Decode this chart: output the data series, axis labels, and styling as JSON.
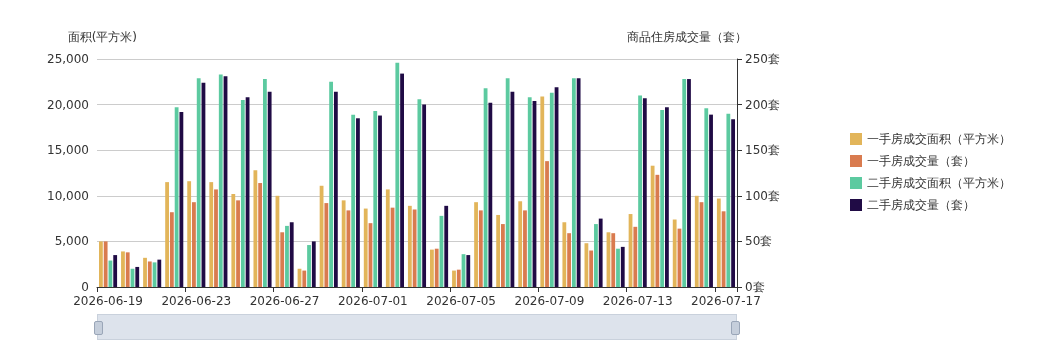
{
  "chart_data": {
    "type": "bar",
    "ylabel": "面积(平方米)",
    "y2label": "商品住房成交量（套）",
    "categories": [
      "2026-06-19",
      null,
      null,
      null,
      "2026-06-23",
      null,
      null,
      null,
      "2026-06-27",
      null,
      null,
      null,
      "2026-07-01",
      null,
      null,
      null,
      "2026-07-05",
      null,
      null,
      null,
      "2026-07-09",
      null,
      null,
      null,
      "2026-07-13",
      null,
      null,
      null,
      "2026-07-17"
    ],
    "series": [
      {
        "name": "一手房成交面积（平方米）",
        "color": "#e2b55a",
        "values": [
          5000,
          3900,
          3200,
          11500,
          11600,
          11500,
          10200,
          12800,
          10000,
          2000,
          11100,
          9500,
          8600,
          10700,
          8900,
          4100,
          1800,
          9300,
          7900,
          9400,
          20900,
          7100,
          4800,
          6000,
          8000,
          13300,
          7400,
          10000,
          9700
        ]
      },
      {
        "name": "一手房成交量（套）",
        "color": "#d97b4f",
        "axis": "y2",
        "values": [
          50,
          38,
          28,
          82,
          93,
          107,
          95,
          114,
          60,
          18,
          92,
          84,
          70,
          87,
          85,
          42,
          19,
          84,
          69,
          84,
          138,
          59,
          40,
          59,
          66,
          123,
          64,
          93,
          83
        ]
      },
      {
        "name": "二手房成交面积（平方米）",
        "color": "#5ccaa0",
        "values": [
          2900,
          2000,
          2700,
          19700,
          22900,
          23300,
          20500,
          22800,
          6700,
          4600,
          22500,
          18900,
          19300,
          24600,
          20600,
          7800,
          3600,
          21800,
          22900,
          20800,
          21300,
          22900,
          6900,
          4200,
          21000,
          19400,
          22800,
          19600,
          19000
        ]
      },
      {
        "name": "二手房成交量（套）",
        "color": "#200b45",
        "axis": "y2",
        "values": [
          35,
          22,
          30,
          192,
          224,
          231,
          208,
          214,
          71,
          50,
          214,
          185,
          188,
          234,
          200,
          89,
          35,
          202,
          214,
          204,
          219,
          229,
          75,
          44,
          207,
          197,
          228,
          189,
          184
        ]
      }
    ],
    "ylim": [
      0,
      25000
    ],
    "yticks": [
      0,
      {
        "value": 5000,
        "label": "5,000"
      },
      {
        "value": 10000,
        "label": "10,000"
      },
      {
        "value": 15000,
        "label": "15,000"
      },
      {
        "value": 20000,
        "label": "20,000"
      },
      {
        "value": 25000,
        "label": "25,000"
      }
    ],
    "y2lim": [
      0,
      250
    ],
    "y2ticks": [
      {
        "value": 0,
        "label": "0套"
      },
      {
        "value": 50,
        "label": "50套"
      },
      {
        "value": 100,
        "label": "100套"
      },
      {
        "value": 150,
        "label": "150套"
      },
      {
        "value": 200,
        "label": "200套"
      },
      {
        "value": 250,
        "label": "250套"
      }
    ],
    "grid": "y",
    "legend": "right"
  }
}
